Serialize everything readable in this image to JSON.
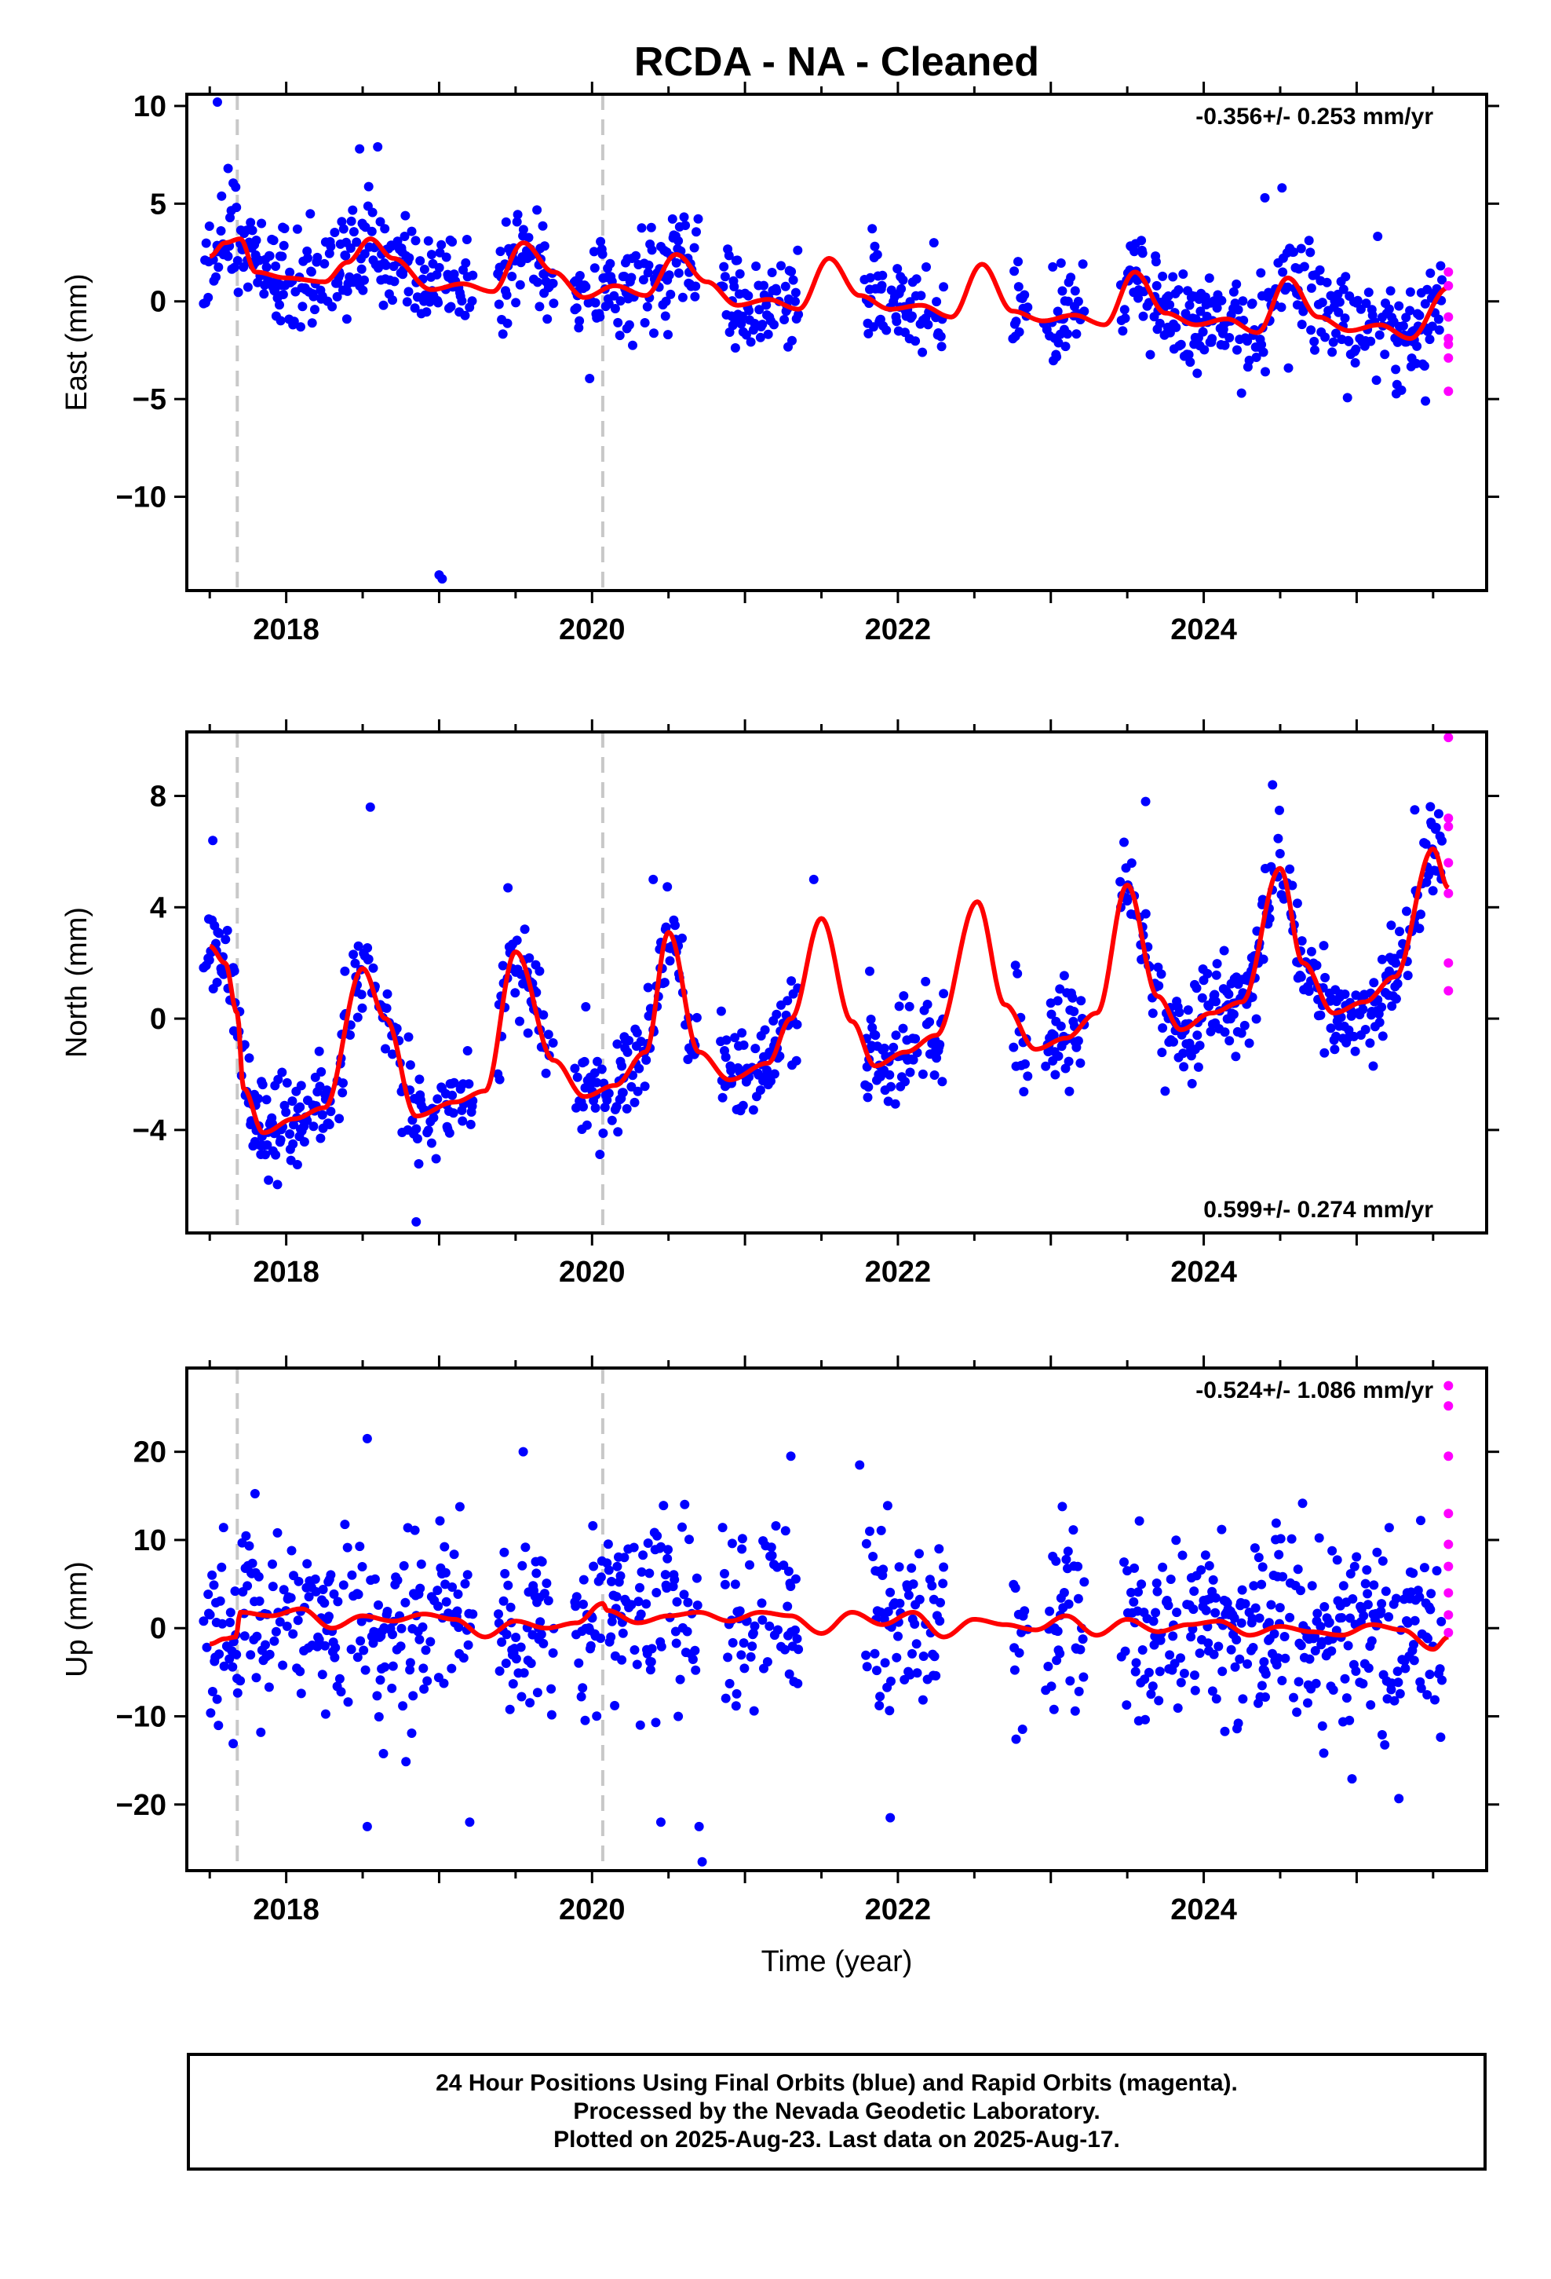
{
  "title": "RCDA  - NA - Cleaned",
  "colors": {
    "final_orbits": "#0000ff",
    "rapid_orbits": "#ff00ff",
    "model_fit": "#ff0000",
    "equipment_change_lines": "#c8c8c8"
  },
  "chart_data": [
    {
      "type": "scatter",
      "ylabel": "East (mm)",
      "xlabel": "",
      "rate_label": "-0.356+/- 0.253 mm/yr",
      "rate_position": "top-right",
      "xlim": [
        2017.35,
        2025.85
      ],
      "ylim": [
        -14.8,
        10.6
      ],
      "xticks": [
        2018,
        2020,
        2022,
        2024
      ],
      "yticks": [
        10,
        5,
        0,
        -5,
        -10
      ],
      "grid": false,
      "equipment_changes": [
        2017.68,
        2020.07
      ],
      "series": [
        {
          "type": "line",
          "x": [
            2017.5,
            2017.6,
            2017.7,
            2017.8,
            2018.0,
            2018.25,
            2018.4,
            2018.55,
            2018.7,
            2018.95,
            2019.15,
            2019.35,
            2019.55,
            2019.75,
            2019.95,
            2020.15,
            2020.35,
            2020.55,
            2020.75,
            2020.95,
            2021.15,
            2021.35,
            2021.55,
            2021.75,
            2021.95,
            2022.15,
            2022.35,
            2022.55,
            2022.75,
            2022.95,
            2023.15,
            2023.35,
            2023.55,
            2023.75,
            2023.95,
            2024.15,
            2024.35,
            2024.55,
            2024.75,
            2024.95,
            2025.15,
            2025.35,
            2025.6
          ],
          "y": [
            2.3,
            3.0,
            3.2,
            1.5,
            1.2,
            1.0,
            2.0,
            3.2,
            2.2,
            0.6,
            0.9,
            0.5,
            3.0,
            1.5,
            0.2,
            0.8,
            0.3,
            2.4,
            1.0,
            -0.2,
            0.1,
            -0.4,
            2.2,
            0.3,
            -0.4,
            -0.2,
            -0.8,
            1.9,
            -0.5,
            -1.0,
            -0.7,
            -1.2,
            1.5,
            -0.6,
            -1.2,
            -0.9,
            -1.6,
            1.2,
            -0.8,
            -1.5,
            -1.2,
            -1.9,
            0.7
          ]
        }
      ],
      "noise_sigma": 1.3,
      "outliers": [
        {
          "x": 2017.55,
          "y": 10.2
        },
        {
          "x": 2017.62,
          "y": 6.8
        },
        {
          "x": 2018.48,
          "y": 7.8
        },
        {
          "x": 2019.0,
          "y": -14.0
        },
        {
          "x": 2019.02,
          "y": -14.2
        },
        {
          "x": 2024.4,
          "y": 5.3
        },
        {
          "x": 2025.45,
          "y": -5.1
        }
      ],
      "rapid_points": {
        "x": [
          2025.6,
          2025.6,
          2025.6,
          2025.6,
          2025.6,
          2025.6,
          2025.6
        ],
        "y": [
          1.5,
          0.8,
          -0.8,
          -1.9,
          -2.2,
          -2.9,
          -4.6
        ]
      }
    },
    {
      "type": "scatter",
      "ylabel": "North (mm)",
      "xlabel": "",
      "rate_label": "0.599+/- 0.274 mm/yr",
      "rate_position": "bottom-right",
      "xlim": [
        2017.35,
        2025.85
      ],
      "ylim": [
        -7.7,
        10.3
      ],
      "xticks": [
        2018,
        2020,
        2022,
        2024
      ],
      "yticks": [
        8,
        4,
        0,
        -4
      ],
      "grid": false,
      "equipment_changes": [
        2017.68,
        2020.07
      ],
      "series": [
        {
          "type": "line",
          "x": [
            2017.5,
            2017.6,
            2017.68,
            2017.72,
            2017.85,
            2018.05,
            2018.25,
            2018.5,
            2018.65,
            2018.85,
            2019.1,
            2019.3,
            2019.5,
            2019.75,
            2019.95,
            2020.15,
            2020.35,
            2020.5,
            2020.7,
            2020.9,
            2021.15,
            2021.3,
            2021.5,
            2021.7,
            2021.85,
            2022.05,
            2022.25,
            2022.52,
            2022.7,
            2022.9,
            2023.1,
            2023.3,
            2023.5,
            2023.7,
            2023.85,
            2024.05,
            2024.25,
            2024.5,
            2024.65,
            2024.85,
            2025.05,
            2025.25,
            2025.5,
            2025.6
          ],
          "y": [
            2.6,
            2.0,
            0.2,
            -2.5,
            -4.1,
            -3.6,
            -3.2,
            1.8,
            0.0,
            -3.5,
            -3.0,
            -2.6,
            2.4,
            -1.5,
            -2.8,
            -2.4,
            -1.2,
            3.1,
            -1.2,
            -2.2,
            -1.6,
            0.0,
            3.6,
            -0.1,
            -1.7,
            -1.2,
            -0.6,
            4.2,
            0.5,
            -1.1,
            -0.7,
            0.2,
            4.8,
            0.8,
            -0.4,
            0.2,
            0.6,
            5.4,
            2.0,
            0.2,
            0.6,
            1.5,
            6.1,
            4.7
          ]
        }
      ],
      "noise_sigma": 0.9,
      "outliers": [
        {
          "x": 2017.52,
          "y": 6.4
        },
        {
          "x": 2018.55,
          "y": 7.6
        },
        {
          "x": 2018.85,
          "y": -7.3
        },
        {
          "x": 2019.45,
          "y": 4.7
        },
        {
          "x": 2020.4,
          "y": 5.0
        },
        {
          "x": 2021.45,
          "y": 5.0
        },
        {
          "x": 2023.62,
          "y": 7.8
        },
        {
          "x": 2024.45,
          "y": 8.4
        },
        {
          "x": 2025.38,
          "y": 7.5
        }
      ],
      "rapid_points": {
        "x": [
          2025.6,
          2025.6,
          2025.6,
          2025.6,
          2025.6,
          2025.6,
          2025.6
        ],
        "y": [
          10.1,
          7.2,
          6.9,
          5.6,
          4.5,
          2.0,
          1.0
        ]
      }
    },
    {
      "type": "scatter",
      "ylabel": "Up (mm)",
      "xlabel": "Time (year)",
      "rate_label": "-0.524+/- 1.086 mm/yr",
      "rate_position": "top-right",
      "xlim": [
        2017.35,
        2025.85
      ],
      "ylim": [
        -27.5,
        29.5
      ],
      "xticks": [
        2018,
        2020,
        2022,
        2024
      ],
      "yticks": [
        20,
        10,
        0,
        -10,
        -20
      ],
      "grid": false,
      "equipment_changes": [
        2017.68,
        2020.07
      ],
      "series": [
        {
          "type": "line",
          "x": [
            2017.5,
            2017.6,
            2017.67,
            2017.7,
            2017.9,
            2018.1,
            2018.3,
            2018.5,
            2018.7,
            2018.9,
            2019.1,
            2019.3,
            2019.5,
            2019.7,
            2019.9,
            2020.07,
            2020.1,
            2020.3,
            2020.5,
            2020.7,
            2020.9,
            2021.1,
            2021.3,
            2021.5,
            2021.7,
            2021.9,
            2022.1,
            2022.3,
            2022.5,
            2022.7,
            2022.9,
            2023.1,
            2023.3,
            2023.5,
            2023.7,
            2023.9,
            2024.1,
            2024.3,
            2024.5,
            2024.7,
            2024.9,
            2025.1,
            2025.3,
            2025.5,
            2025.6
          ],
          "y": [
            -1.8,
            -1.2,
            -1.0,
            1.8,
            1.4,
            2.2,
            0.0,
            1.4,
            0.8,
            1.6,
            1.0,
            -1.0,
            0.8,
            0.0,
            0.6,
            2.8,
            2.0,
            0.6,
            1.4,
            1.8,
            0.8,
            1.8,
            1.4,
            -0.6,
            1.8,
            0.4,
            1.8,
            -1.0,
            1.0,
            0.4,
            -0.2,
            1.4,
            -0.8,
            1.0,
            -0.4,
            0.4,
            0.8,
            -0.8,
            0.2,
            -0.4,
            -0.8,
            0.4,
            -0.2,
            -2.4,
            -1.0
          ]
        }
      ],
      "noise_sigma": 5.5,
      "outliers": [
        {
          "x": 2018.53,
          "y": 21.5
        },
        {
          "x": 2019.55,
          "y": 20.0
        },
        {
          "x": 2020.45,
          "y": -22.0
        },
        {
          "x": 2020.72,
          "y": -26.5
        },
        {
          "x": 2020.7,
          "y": -22.5
        },
        {
          "x": 2021.3,
          "y": 19.5
        },
        {
          "x": 2018.53,
          "y": -22.5
        },
        {
          "x": 2019.2,
          "y": -22.0
        },
        {
          "x": 2021.75,
          "y": 18.5
        },
        {
          "x": 2021.95,
          "y": -21.5
        }
      ],
      "rapid_points": {
        "x": [
          2025.6,
          2025.6,
          2025.6,
          2025.6,
          2025.6,
          2025.6,
          2025.6,
          2025.6,
          2025.6
        ],
        "y": [
          27.5,
          25.2,
          19.5,
          13.0,
          9.5,
          7.0,
          4.0,
          1.5,
          -0.5
        ]
      }
    }
  ],
  "footer": {
    "line1": "24 Hour Positions Using Final Orbits (blue) and Rapid Orbits (magenta).",
    "line2": "Processed by the Nevada Geodetic Laboratory.",
    "line3": "Plotted on 2025-Aug-23. Last data on 2025-Aug-17."
  }
}
